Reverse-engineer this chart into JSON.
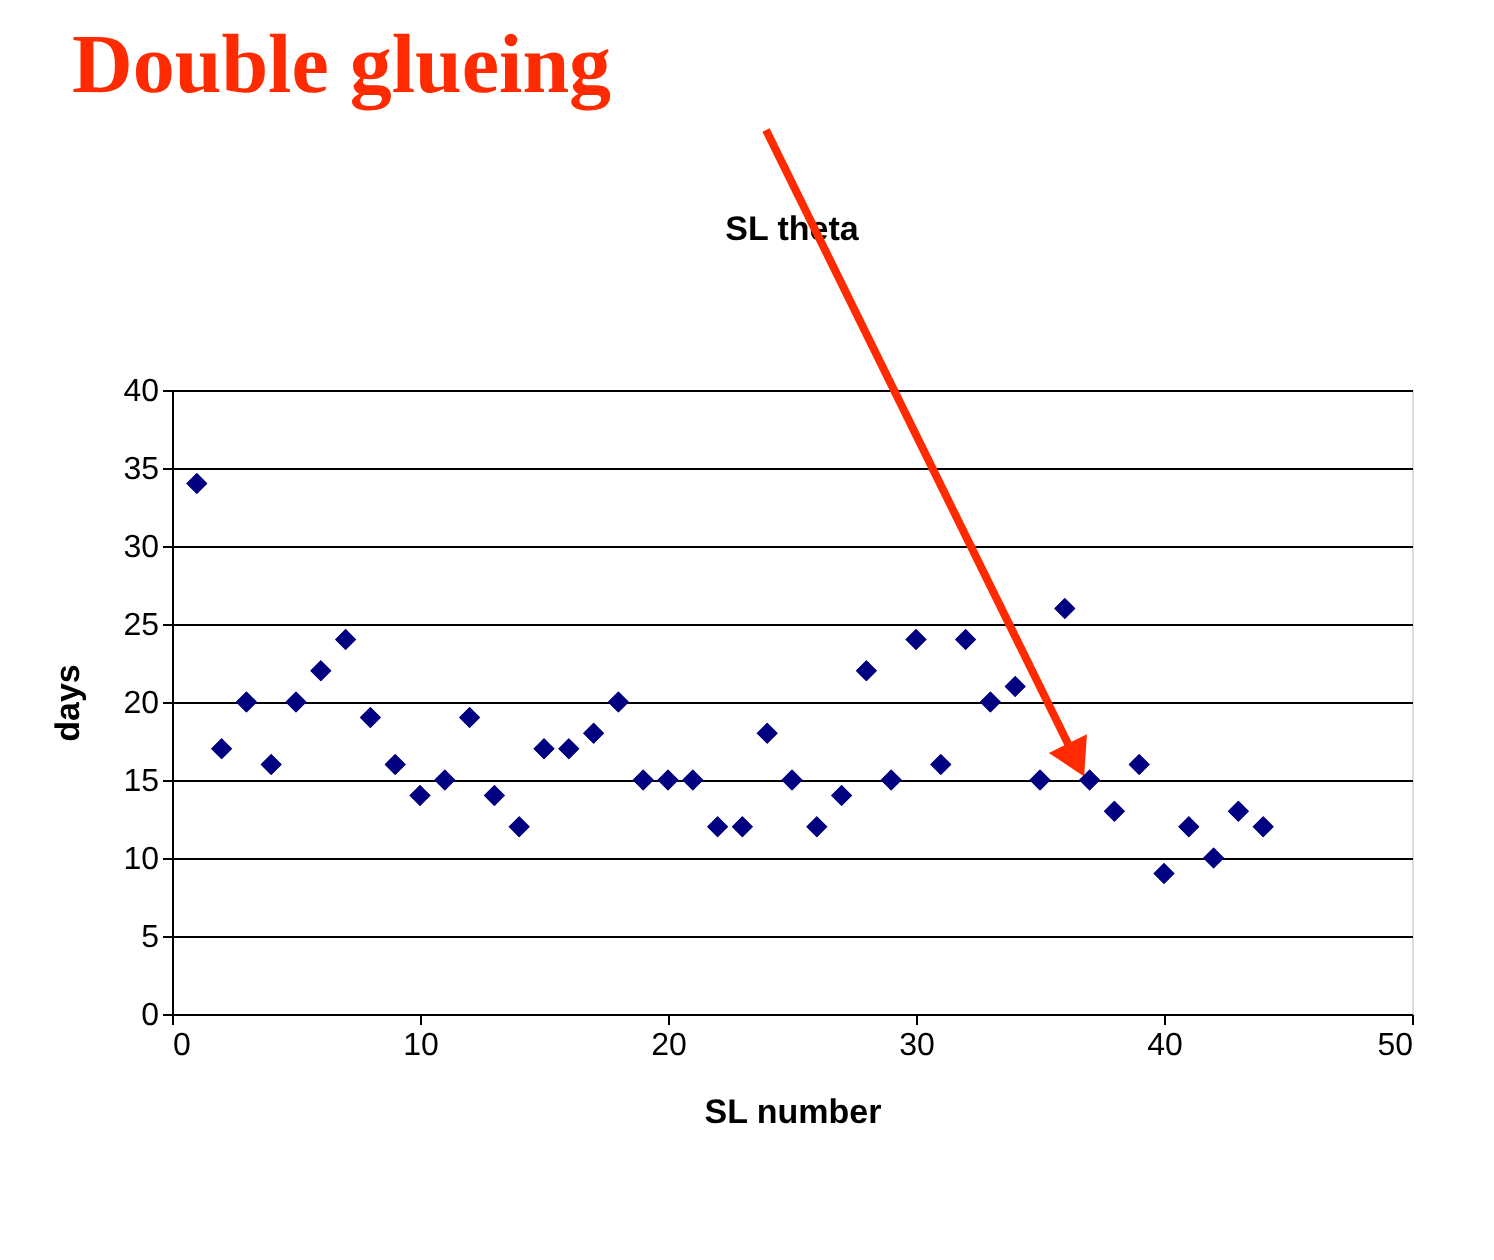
{
  "chart_data": {
    "type": "scatter",
    "title": "SL theta",
    "xlabel": "SL number",
    "ylabel": "days",
    "x": [
      1,
      2,
      3,
      4,
      5,
      6,
      7,
      8,
      9,
      10,
      11,
      12,
      13,
      14,
      15,
      16,
      17,
      18,
      19,
      20,
      21,
      22,
      23,
      24,
      25,
      26,
      27,
      28,
      29,
      30,
      31,
      32,
      33,
      34,
      35,
      36,
      37,
      38,
      39,
      40,
      41,
      42,
      43,
      44
    ],
    "series": [
      {
        "color": "#000080",
        "values": [
          34,
          17,
          20,
          16,
          20,
          22,
          24,
          19,
          16,
          14,
          15,
          19,
          14,
          12,
          17,
          17,
          18,
          20,
          15,
          15,
          15,
          12,
          12,
          18,
          15,
          12,
          14,
          22,
          15,
          24,
          16,
          24,
          20,
          21,
          15,
          26,
          15,
          13,
          16,
          9,
          12,
          10,
          13,
          12
        ]
      }
    ],
    "xlim": [
      0,
      50
    ],
    "xticks": [
      0,
      10,
      20,
      30,
      40,
      50
    ],
    "ylim": [
      0,
      40
    ],
    "yticks": [
      0,
      5,
      10,
      15,
      20,
      25,
      30,
      35,
      40
    ],
    "grid": "y",
    "legend": false,
    "marker": "diamond",
    "annotations": [
      "Double glueing"
    ]
  }
}
